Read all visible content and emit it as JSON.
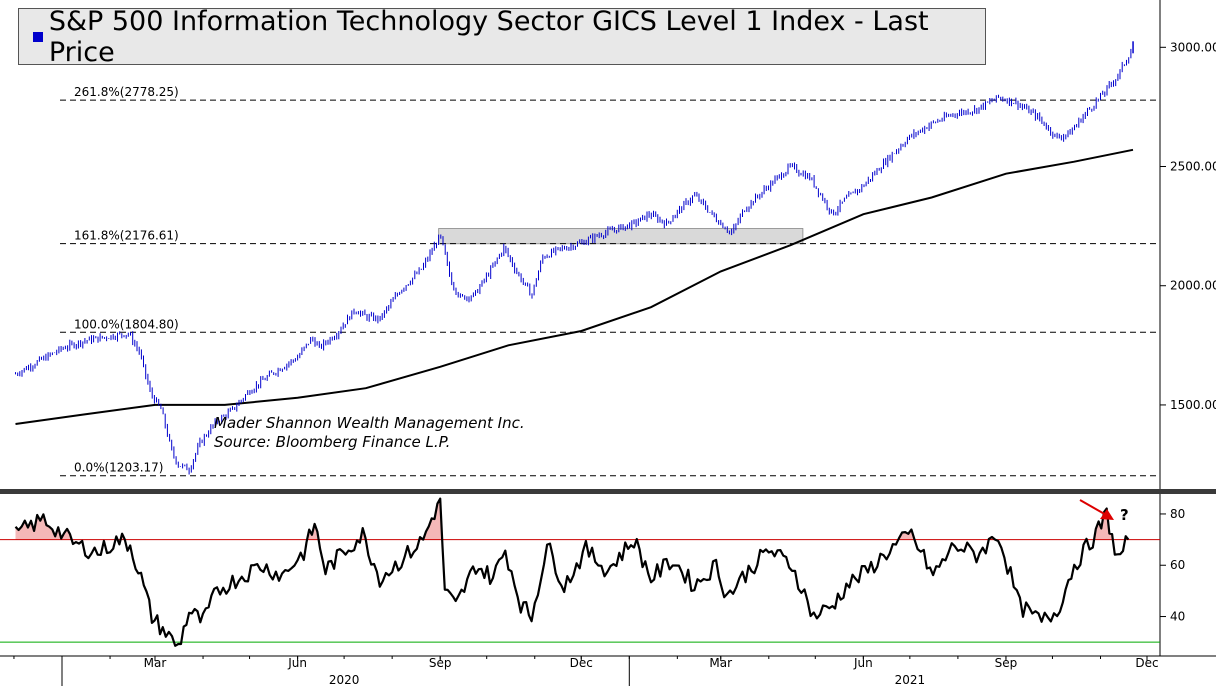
{
  "title": "S&P 500 Information Technology Sector GICS Level 1 Index - Last Price",
  "attribution": {
    "line1": "Mader Shannon Wealth Management Inc.",
    "line2": "Source: Bloomberg Finance L.P."
  },
  "colors": {
    "price": "#0000cc",
    "moving_average": "#000000",
    "rsi": "#000000",
    "overbought_line": "#cc0000",
    "oversold_line": "#00aa00",
    "overbought_fill": "#f4b8b8",
    "resistance_zone": "#d0d0d0",
    "arrow": "#dd0000"
  },
  "annotation": {
    "question": "?"
  },
  "chart_data": [
    {
      "type": "line",
      "panel": "price",
      "ylim": [
        1160,
        3190
      ],
      "yticks": [
        "3000.00",
        "2500.00",
        "2000.00",
        "1500.00"
      ],
      "ytick_values": [
        3000,
        2500,
        2000,
        1500
      ],
      "fib_levels": [
        {
          "label": "261.8%(2778.25)",
          "value": 2778.25
        },
        {
          "label": "161.8%(2176.61)",
          "value": 2176.61
        },
        {
          "label": "100.0%(1804.80)",
          "value": 1804.8
        },
        {
          "label": "0.0%(1203.17)",
          "value": 1203.17
        }
      ],
      "resistance_zone": {
        "x_start": "2020-08-31",
        "x_end": "2021-04-23",
        "y_low": 2176,
        "y_high": 2240
      },
      "series": [
        {
          "style": "candles",
          "x": [
            "2019-12-02",
            "2019-12-16",
            "2020-01-02",
            "2020-01-16",
            "2020-02-03",
            "2020-02-13",
            "2020-02-20",
            "2020-02-27",
            "2020-03-05",
            "2020-03-12",
            "2020-03-16",
            "2020-03-23",
            "2020-03-30",
            "2020-04-08",
            "2020-04-20",
            "2020-05-01",
            "2020-05-15",
            "2020-06-01",
            "2020-06-10",
            "2020-06-15",
            "2020-06-26",
            "2020-07-08",
            "2020-07-15",
            "2020-07-24",
            "2020-08-06",
            "2020-08-20",
            "2020-09-01",
            "2020-09-08",
            "2020-09-14",
            "2020-09-23",
            "2020-10-05",
            "2020-10-12",
            "2020-10-21",
            "2020-10-30",
            "2020-11-06",
            "2020-11-16",
            "2020-12-01",
            "2020-12-15",
            "2021-01-04",
            "2021-01-14",
            "2021-01-25",
            "2021-02-01",
            "2021-02-12",
            "2021-02-26",
            "2021-03-08",
            "2021-03-16",
            "2021-04-01",
            "2021-04-15",
            "2021-04-28",
            "2021-05-12",
            "2021-05-20",
            "2021-06-01",
            "2021-06-15",
            "2021-06-30",
            "2021-07-15",
            "2021-07-29",
            "2021-08-13",
            "2021-08-27",
            "2021-09-07",
            "2021-09-21",
            "2021-10-04",
            "2021-10-12",
            "2021-10-22",
            "2021-11-02",
            "2021-11-12",
            "2021-11-22"
          ],
          "values": [
            1630,
            1680,
            1740,
            1770,
            1790,
            1800,
            1720,
            1550,
            1480,
            1300,
            1250,
            1230,
            1340,
            1420,
            1480,
            1560,
            1630,
            1700,
            1780,
            1740,
            1800,
            1900,
            1870,
            1860,
            1980,
            2070,
            2210,
            2020,
            1950,
            1960,
            2080,
            2160,
            2050,
            1960,
            2120,
            2150,
            2180,
            2220,
            2260,
            2300,
            2260,
            2310,
            2380,
            2280,
            2220,
            2320,
            2420,
            2500,
            2450,
            2300,
            2360,
            2420,
            2520,
            2620,
            2680,
            2720,
            2740,
            2790,
            2770,
            2710,
            2620,
            2640,
            2720,
            2800,
            2880,
            3000
          ]
        },
        {
          "style": "line",
          "x": [
            "2019-12-02",
            "2020-01-15",
            "2020-03-01",
            "2020-04-15",
            "2020-06-01",
            "2020-07-15",
            "2020-09-01",
            "2020-10-15",
            "2020-12-01",
            "2021-01-15",
            "2021-03-01",
            "2021-04-15",
            "2021-06-01",
            "2021-07-15",
            "2021-09-01",
            "2021-10-15",
            "2021-11-22"
          ],
          "values": [
            1420,
            1460,
            1500,
            1500,
            1530,
            1570,
            1660,
            1750,
            1810,
            1910,
            2060,
            2170,
            2300,
            2370,
            2470,
            2520,
            2570
          ]
        }
      ]
    },
    {
      "type": "line",
      "panel": "rsi",
      "ylim": [
        25,
        87
      ],
      "yticks": [
        "80",
        "60",
        "40"
      ],
      "ytick_values": [
        80,
        60,
        40
      ],
      "reference_lines": [
        70,
        30
      ],
      "series": [
        {
          "x": [
            "2019-12-02",
            "2019-12-20",
            "2020-01-10",
            "2020-01-24",
            "2020-02-07",
            "2020-02-14",
            "2020-02-21",
            "2020-02-28",
            "2020-03-06",
            "2020-03-16",
            "2020-03-23",
            "2020-04-01",
            "2020-04-10",
            "2020-04-24",
            "2020-05-08",
            "2020-05-22",
            "2020-06-05",
            "2020-06-12",
            "2020-06-19",
            "2020-07-02",
            "2020-07-13",
            "2020-07-24",
            "2020-08-07",
            "2020-08-21",
            "2020-09-01",
            "2020-09-04",
            "2020-09-11",
            "2020-09-24",
            "2020-10-05",
            "2020-10-13",
            "2020-10-23",
            "2020-10-30",
            "2020-11-09",
            "2020-11-20",
            "2020-12-04",
            "2020-12-18",
            "2021-01-04",
            "2021-01-15",
            "2021-01-29",
            "2021-02-12",
            "2021-02-26",
            "2021-03-05",
            "2021-03-19",
            "2021-04-01",
            "2021-04-16",
            "2021-04-30",
            "2021-05-12",
            "2021-05-21",
            "2021-06-04",
            "2021-06-18",
            "2021-07-02",
            "2021-07-16",
            "2021-07-30",
            "2021-08-13",
            "2021-08-27",
            "2021-09-10",
            "2021-09-24",
            "2021-10-04",
            "2021-10-15",
            "2021-10-29",
            "2021-11-05",
            "2021-11-12",
            "2021-11-19"
          ],
          "values": [
            72,
            78,
            68,
            65,
            70,
            68,
            55,
            40,
            35,
            28,
            42,
            38,
            50,
            55,
            60,
            56,
            65,
            76,
            58,
            66,
            72,
            55,
            62,
            70,
            86,
            50,
            44,
            60,
            55,
            66,
            45,
            40,
            68,
            52,
            66,
            58,
            70,
            55,
            62,
            52,
            60,
            48,
            58,
            66,
            60,
            40,
            44,
            52,
            58,
            66,
            72,
            56,
            68,
            64,
            72,
            44,
            38,
            42,
            60,
            72,
            80,
            62,
            70
          ]
        }
      ]
    }
  ],
  "x_axis": {
    "months": [
      "Mar",
      "Jun",
      "Sep",
      "Dec",
      "Mar",
      "Jun",
      "Sep",
      "Dec"
    ],
    "month_dates": [
      "2020-03-01",
      "2020-06-01",
      "2020-09-01",
      "2020-12-01",
      "2021-03-01",
      "2021-06-01",
      "2021-09-01",
      "2021-12-01"
    ],
    "years": [
      "2020",
      "2021"
    ],
    "year_dates": [
      "2020-07-01",
      "2021-07-01"
    ]
  }
}
